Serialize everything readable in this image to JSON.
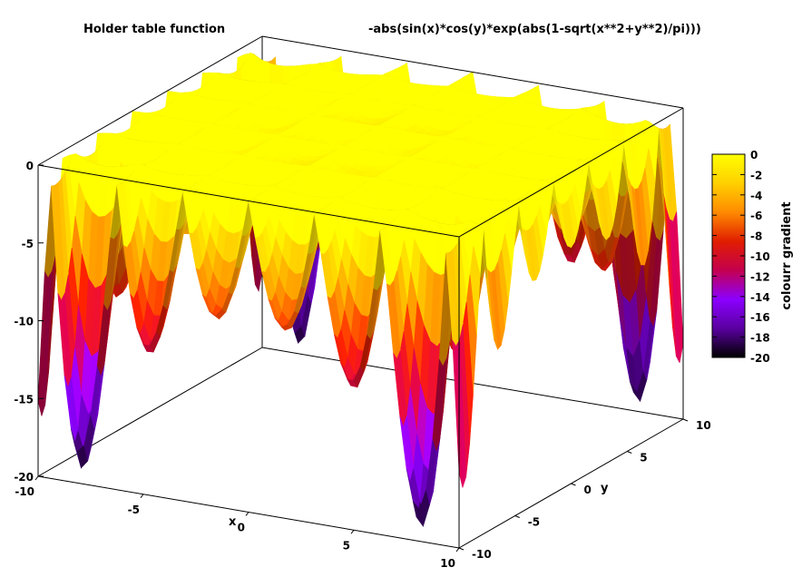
{
  "chart_data": {
    "type": "surface",
    "title": "Holder table function",
    "formula": "-abs(sin(x)*cos(y)*exp(abs(1-sqrt(x**2+y**2)/pi)))",
    "xlabel": "x",
    "ylabel": "y",
    "zlabel": "",
    "xlim": [
      -10,
      10
    ],
    "ylim": [
      -10,
      10
    ],
    "zlim": [
      -20,
      0
    ],
    "x_ticks": [
      -10,
      -5,
      0,
      5,
      10
    ],
    "y_ticks": [
      -10,
      -5,
      0,
      5,
      10
    ],
    "z_ticks": [
      0,
      -5,
      -10,
      -15,
      -20
    ],
    "colorbar": {
      "label": "colourr gradient",
      "range": [
        -20,
        0
      ],
      "ticks": [
        0,
        -2,
        -4,
        -6,
        -8,
        -10,
        -12,
        -14,
        -16,
        -18,
        -20
      ],
      "colors": [
        "#000000",
        "#5a00a0",
        "#8c00ff",
        "#c4004e",
        "#e01e00",
        "#ff8a00",
        "#ffd000",
        "#ffff00"
      ]
    },
    "grid": false
  }
}
